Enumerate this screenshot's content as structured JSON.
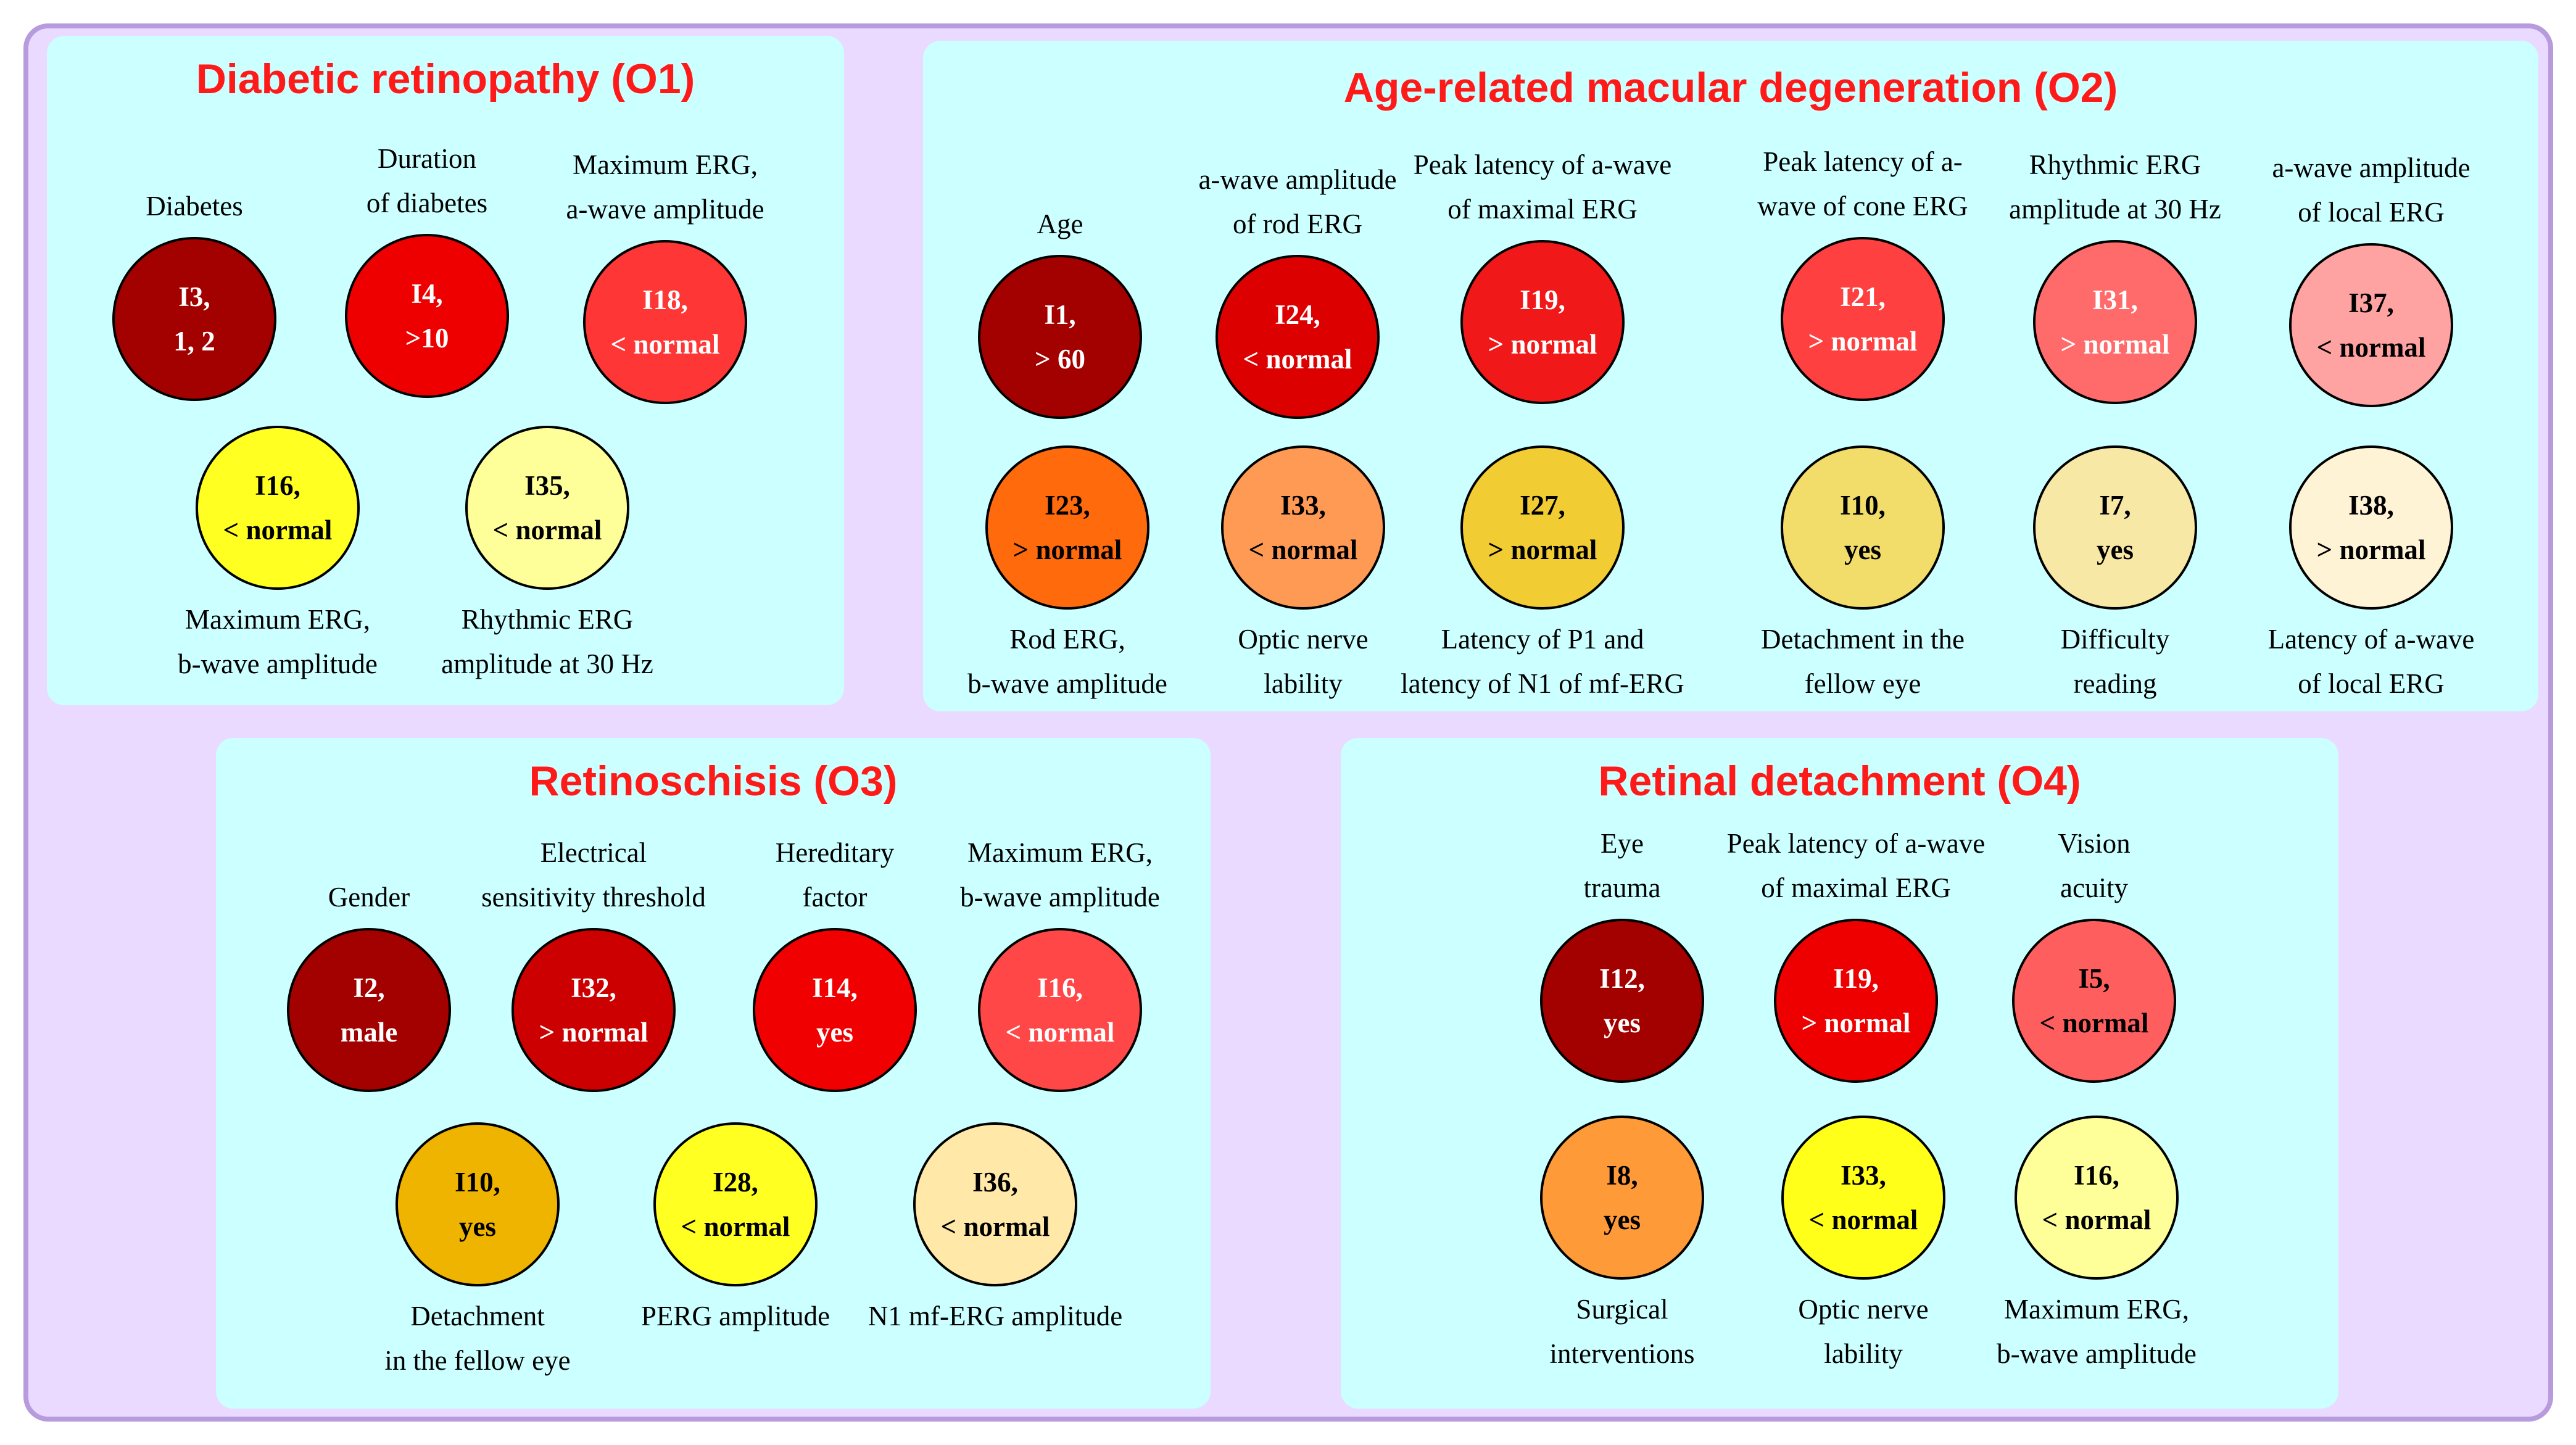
{
  "colors": {
    "frame_bg": "#ebdaff",
    "frame_border": "#b79bdc",
    "panel_bg": "#ccffff",
    "title": "#ff1a1a"
  },
  "panels": [
    {
      "id": "o1",
      "title": "Diabetic retinopathy (O1)",
      "nodes": [
        {
          "id": "I3",
          "line1": "I3,",
          "line2": "1, 2",
          "color": "#a30000",
          "text_color": "#ffffff",
          "label": [
            "Diabetes"
          ],
          "label_pos": "above"
        },
        {
          "id": "I4",
          "line1": "I4,",
          "line2": ">10",
          "color": "#ee0000",
          "text_color": "#ffffff",
          "label": [
            "Duration",
            "of diabetes"
          ],
          "label_pos": "above"
        },
        {
          "id": "I18",
          "line1": "I18,",
          "line2": "< normal",
          "color": "#ff3636",
          "text_color": "#ffffff",
          "label": [
            "Maximum ERG,",
            "a-wave amplitude"
          ],
          "label_pos": "above"
        },
        {
          "id": "I16",
          "line1": "I16,",
          "line2": "< normal",
          "color": "#ffff22",
          "text_color": "#000000",
          "label": [
            "Maximum ERG,",
            "b-wave amplitude"
          ],
          "label_pos": "below"
        },
        {
          "id": "I35",
          "line1": "I35,",
          "line2": "< normal",
          "color": "#ffff99",
          "text_color": "#000000",
          "label": [
            "Rhythmic ERG",
            "amplitude at 30 Hz"
          ],
          "label_pos": "below"
        }
      ]
    },
    {
      "id": "o2",
      "title": "Age-related macular degeneration (O2)",
      "nodes": [
        {
          "id": "I1",
          "line1": "I1,",
          "line2": "> 60",
          "color": "#a30000",
          "text_color": "#ffffff",
          "label": [
            "Age"
          ],
          "label_pos": "above"
        },
        {
          "id": "I24",
          "line1": "I24,",
          "line2": "< normal",
          "color": "#dd0000",
          "text_color": "#ffffff",
          "label": [
            "a-wave amplitude",
            "of rod ERG"
          ],
          "label_pos": "above"
        },
        {
          "id": "I19",
          "line1": "I19,",
          "line2": "> normal",
          "color": "#f01818",
          "text_color": "#ffffff",
          "label": [
            "Peak latency of a-wave",
            "of maximal ERG"
          ],
          "label_pos": "above"
        },
        {
          "id": "I21",
          "line1": "I21,",
          "line2": "> normal",
          "color": "#ff4040",
          "text_color": "#ffffff",
          "label": [
            "Peak latency of a-",
            "wave of cone ERG"
          ],
          "label_pos": "above"
        },
        {
          "id": "I31",
          "line1": "I31,",
          "line2": "> normal",
          "color": "#ff6a6a",
          "text_color": "#ffffff",
          "label": [
            "Rhythmic  ERG",
            "amplitude at 30 Hz"
          ],
          "label_pos": "above"
        },
        {
          "id": "I37",
          "line1": "I37,",
          "line2": "< normal",
          "color": "#ffa2a2",
          "text_color": "#000000",
          "label": [
            "a-wave amplitude",
            "of local ERG"
          ],
          "label_pos": "above"
        },
        {
          "id": "I23",
          "line1": "I23,",
          "line2": "> normal",
          "color": "#ff6a0c",
          "text_color": "#000000",
          "label": [
            "Rod ERG,",
            "b-wave amplitude"
          ],
          "label_pos": "below"
        },
        {
          "id": "I33",
          "line1": "I33,",
          "line2": "< normal",
          "color": "#ff9a55",
          "text_color": "#000000",
          "label": [
            "Optic nerve",
            "lability"
          ],
          "label_pos": "below"
        },
        {
          "id": "I27",
          "line1": "I27,",
          "line2": "> normal",
          "color": "#f2cc33",
          "text_color": "#000000",
          "label": [
            "Latency of P1 and",
            "latency of N1 of mf-ERG"
          ],
          "label_pos": "below"
        },
        {
          "id": "I10",
          "line1": "I10,",
          "line2": "yes",
          "color": "#f2dc6a",
          "text_color": "#000000",
          "label": [
            "Detachment in the",
            "fellow eye"
          ],
          "label_pos": "below"
        },
        {
          "id": "I7",
          "line1": "I7,",
          "line2": "yes",
          "color": "#f8e8a6",
          "text_color": "#000000",
          "label": [
            "Difficulty",
            "reading"
          ],
          "label_pos": "below"
        },
        {
          "id": "I38",
          "line1": "I38,",
          "line2": "> normal",
          "color": "#fff3d6",
          "text_color": "#000000",
          "label": [
            "Latency of a-wave",
            "of local ERG"
          ],
          "label_pos": "below"
        }
      ]
    },
    {
      "id": "o3",
      "title": "Retinoschisis (O3)",
      "nodes": [
        {
          "id": "I2",
          "line1": "I2,",
          "line2": "male",
          "color": "#a30000",
          "text_color": "#ffffff",
          "label": [
            "Gender"
          ],
          "label_pos": "above"
        },
        {
          "id": "I32",
          "line1": "I32,",
          "line2": "> normal",
          "color": "#cc0000",
          "text_color": "#ffffff",
          "label": [
            "Electrical",
            "sensitivity threshold"
          ],
          "label_pos": "above"
        },
        {
          "id": "I14",
          "line1": "I14,",
          "line2": "yes",
          "color": "#f00000",
          "text_color": "#ffffff",
          "label": [
            "Hereditary",
            "factor"
          ],
          "label_pos": "above"
        },
        {
          "id": "I16b",
          "line1": "I16,",
          "line2": "< normal",
          "color": "#ff4747",
          "text_color": "#ffffff",
          "label": [
            "Maximum ERG,",
            "b-wave amplitude"
          ],
          "label_pos": "above"
        },
        {
          "id": "I10b",
          "line1": "I10,",
          "line2": "yes",
          "color": "#eeb400",
          "text_color": "#000000",
          "label": [
            "Detachment",
            "in the fellow eye"
          ],
          "label_pos": "below"
        },
        {
          "id": "I28",
          "line1": "I28,",
          "line2": "< normal",
          "color": "#ffff22",
          "text_color": "#000000",
          "label": [
            "PERG amplitude"
          ],
          "label_pos": "below"
        },
        {
          "id": "I36",
          "line1": "I36,",
          "line2": "< normal",
          "color": "#ffe8a8",
          "text_color": "#000000",
          "label": [
            "N1 mf-ERG amplitude"
          ],
          "label_pos": "below"
        }
      ]
    },
    {
      "id": "o4",
      "title": "Retinal detachment (O4)",
      "nodes": [
        {
          "id": "I12",
          "line1": "I12,",
          "line2": "yes",
          "color": "#a30000",
          "text_color": "#ffffff",
          "label": [
            "Eye",
            "trauma"
          ],
          "label_pos": "above"
        },
        {
          "id": "I19b",
          "line1": "I19,",
          "line2": "> normal",
          "color": "#ee0000",
          "text_color": "#ffffff",
          "label": [
            "Peak  latency of a-wave",
            "of maximal ERG"
          ],
          "label_pos": "above"
        },
        {
          "id": "I5",
          "line1": "I5,",
          "line2": "< normal",
          "color": "#ff5e5e",
          "text_color": "#000000",
          "label": [
            "Vision",
            "acuity"
          ],
          "label_pos": "above"
        },
        {
          "id": "I8",
          "line1": "I8,",
          "line2": "yes",
          "color": "#ff9a38",
          "text_color": "#000000",
          "label": [
            "Surgical",
            "interventions"
          ],
          "label_pos": "below"
        },
        {
          "id": "I33b",
          "line1": "I33,",
          "line2": "< normal",
          "color": "#ffff1a",
          "text_color": "#000000",
          "label": [
            "Optic nerve",
            "lability"
          ],
          "label_pos": "below"
        },
        {
          "id": "I16c",
          "line1": "I16,",
          "line2": "< normal",
          "color": "#ffff99",
          "text_color": "#000000",
          "label": [
            "Maximum ERG,",
            "b-wave amplitude"
          ],
          "label_pos": "below"
        }
      ]
    }
  ]
}
